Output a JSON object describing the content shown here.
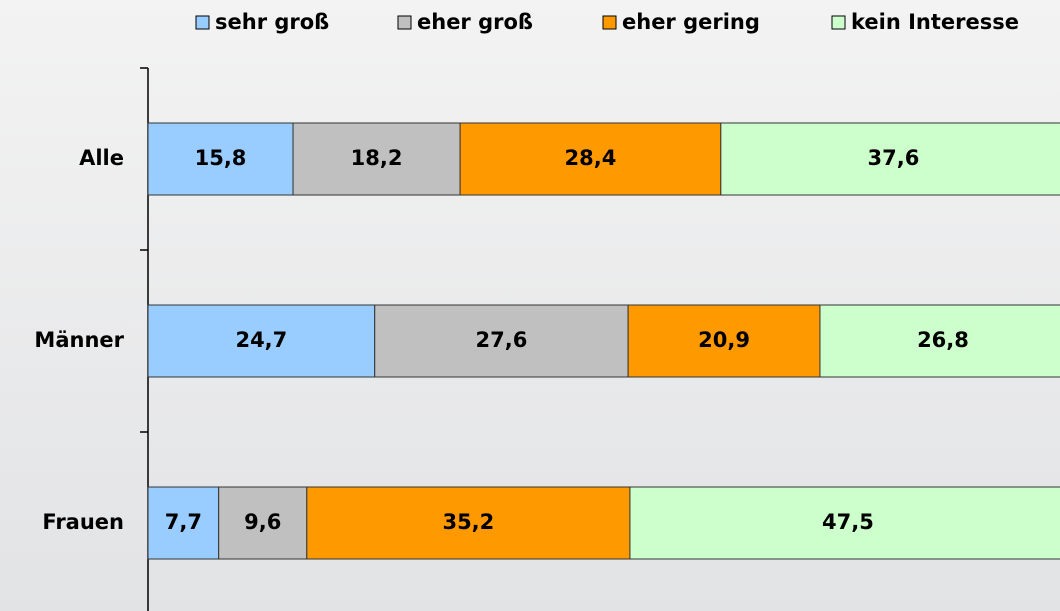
{
  "chart_data": {
    "type": "stacked_barh",
    "categories": [
      "Alle",
      "Männer",
      "Frauen"
    ],
    "series": [
      {
        "name": "sehr groß",
        "color": "#99ccff",
        "values": [
          15.8,
          24.7,
          7.7
        ],
        "value_labels": [
          "15,8",
          "24,7",
          "7,7"
        ]
      },
      {
        "name": "eher groß",
        "color": "#c0c0c0",
        "values": [
          18.2,
          27.6,
          9.6
        ],
        "value_labels": [
          "18,2",
          "27,6",
          "9,6"
        ]
      },
      {
        "name": "eher gering",
        "color": "#ff9900",
        "values": [
          28.4,
          20.9,
          35.2
        ],
        "value_labels": [
          "28,4",
          "20,9",
          "35,2"
        ]
      },
      {
        "name": "kein Interesse",
        "color": "#ccffcc",
        "values": [
          37.6,
          26.8,
          47.5
        ],
        "value_labels": [
          "37,6",
          "26,8",
          "47,5"
        ]
      }
    ],
    "xlim": [
      0,
      100
    ],
    "legend": "top"
  }
}
